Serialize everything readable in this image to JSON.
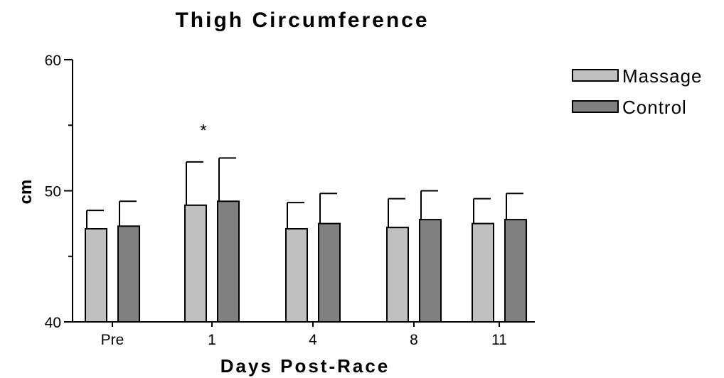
{
  "chart_data": {
    "type": "bar",
    "title": "Thigh Circumference",
    "xlabel": "Days Post-Race",
    "ylabel": "cm",
    "ylim": [
      40,
      60
    ],
    "yticks": [
      40,
      50,
      60
    ],
    "yticks_minor": [
      45,
      55
    ],
    "categories": [
      "Pre",
      "1",
      "4",
      "8",
      "11"
    ],
    "series": [
      {
        "name": "Massage",
        "color": "#c0c0c0",
        "values": [
          47.1,
          48.9,
          47.1,
          47.2,
          47.5
        ],
        "errors": [
          1.4,
          3.3,
          2.0,
          2.2,
          1.9
        ]
      },
      {
        "name": "Control",
        "color": "#808080",
        "values": [
          47.3,
          49.2,
          47.5,
          47.8,
          47.8
        ],
        "errors": [
          1.9,
          3.3,
          2.3,
          2.2,
          2.0
        ]
      }
    ],
    "annotations": [
      {
        "text": "*",
        "category": "1",
        "y": 55
      }
    ],
    "legend_position": "top-right",
    "grid": false
  }
}
